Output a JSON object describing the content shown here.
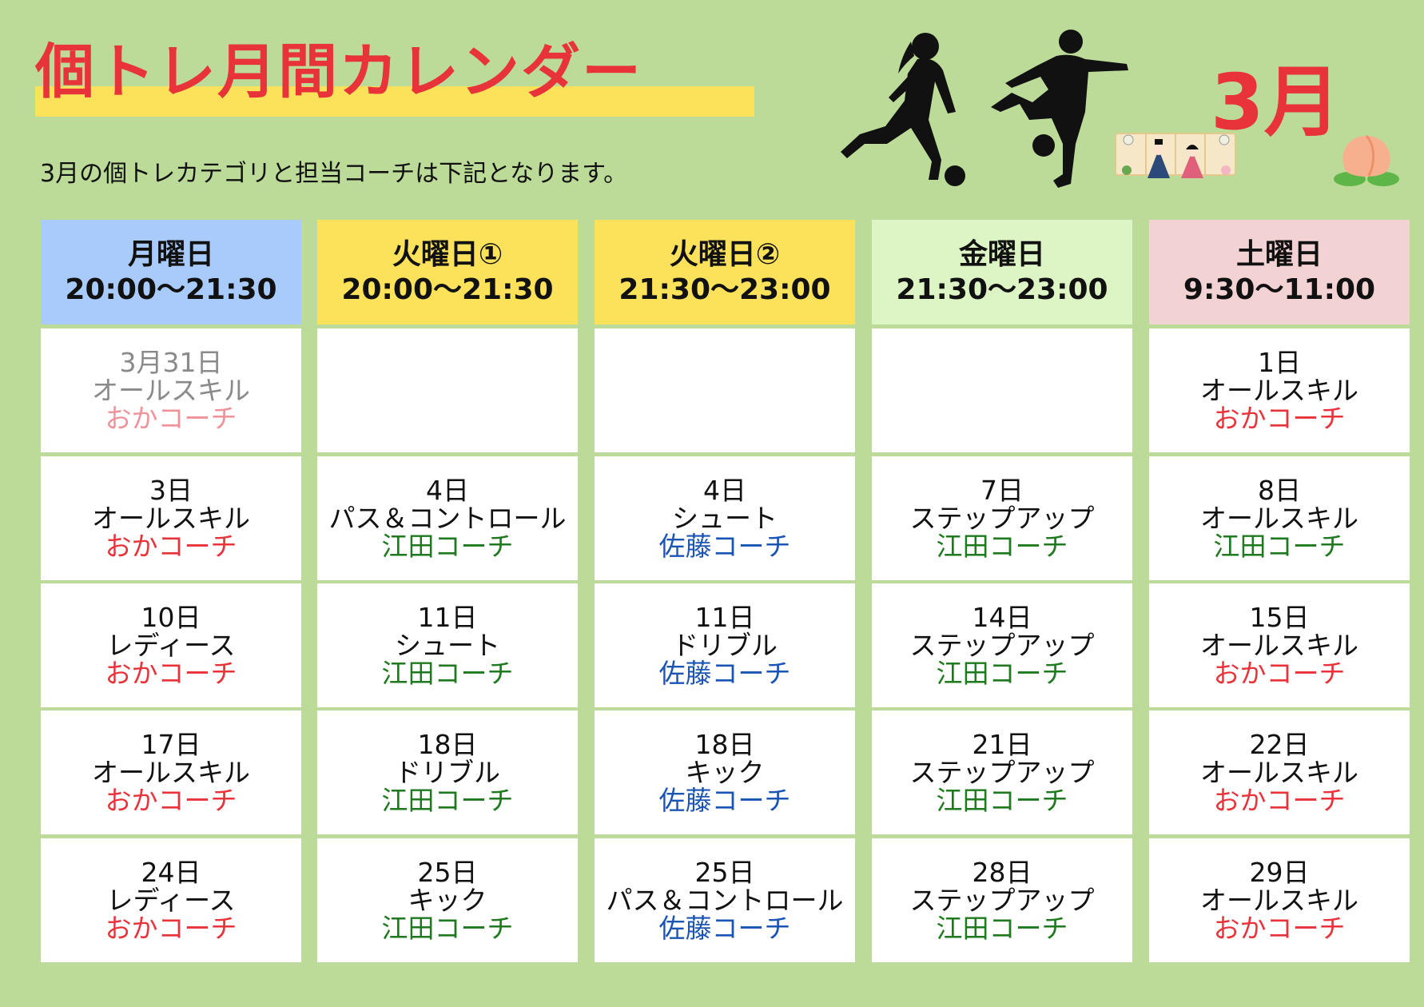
{
  "header": {
    "title": "個トレ月間カレンダー",
    "subtitle": "3月の個トレカテゴリと担当コーチは下記となります。",
    "month": "3月"
  },
  "colors": {
    "background": "#bcdb99",
    "title_red": "#e8333a",
    "highlight_yellow": "#fce25a",
    "coach_oka": "#e8333a",
    "coach_eda": "#1f7a1f",
    "coach_sato": "#1b55b4"
  },
  "illustrations": [
    "soccer-player-female-silhouette",
    "soccer-player-male-silhouette",
    "hina-dolls-icon",
    "peach-icon"
  ],
  "columns": [
    {
      "day": "月曜日",
      "time": "20:00〜21:30",
      "header_color": "#a9cbfb",
      "cells": [
        {
          "date": "3月31日",
          "name": "オールスキル",
          "coach": "おかコーチ",
          "coach_key": "oka",
          "faded": true
        },
        {
          "date": "3日",
          "name": "オールスキル",
          "coach": "おかコーチ",
          "coach_key": "oka"
        },
        {
          "date": "10日",
          "name": "レディース",
          "coach": "おかコーチ",
          "coach_key": "oka"
        },
        {
          "date": "17日",
          "name": "オールスキル",
          "coach": "おかコーチ",
          "coach_key": "oka"
        },
        {
          "date": "24日",
          "name": "レディース",
          "coach": "おかコーチ",
          "coach_key": "oka"
        }
      ]
    },
    {
      "day": "火曜日①",
      "time": "20:00〜21:30",
      "header_color": "#fce25a",
      "cells": [
        {
          "empty": true
        },
        {
          "date": "4日",
          "name": "パス＆コントロール",
          "coach": "江田コーチ",
          "coach_key": "eda"
        },
        {
          "date": "11日",
          "name": "シュート",
          "coach": "江田コーチ",
          "coach_key": "eda"
        },
        {
          "date": "18日",
          "name": "ドリブル",
          "coach": "江田コーチ",
          "coach_key": "eda"
        },
        {
          "date": "25日",
          "name": "キック",
          "coach": "江田コーチ",
          "coach_key": "eda"
        }
      ]
    },
    {
      "day": "火曜日②",
      "time": "21:30〜23:00",
      "header_color": "#fce25a",
      "cells": [
        {
          "empty": true
        },
        {
          "date": "4日",
          "name": "シュート",
          "coach": "佐藤コーチ",
          "coach_key": "sato"
        },
        {
          "date": "11日",
          "name": "ドリブル",
          "coach": "佐藤コーチ",
          "coach_key": "sato"
        },
        {
          "date": "18日",
          "name": "キック",
          "coach": "佐藤コーチ",
          "coach_key": "sato"
        },
        {
          "date": "25日",
          "name": "パス＆コントロール",
          "coach": "佐藤コーチ",
          "coach_key": "sato"
        }
      ]
    },
    {
      "day": "金曜日",
      "time": "21:30〜23:00",
      "header_color": "#ddf5c4",
      "cells": [
        {
          "empty": true
        },
        {
          "date": "7日",
          "name": "ステップアップ",
          "coach": "江田コーチ",
          "coach_key": "eda"
        },
        {
          "date": "14日",
          "name": "ステップアップ",
          "coach": "江田コーチ",
          "coach_key": "eda"
        },
        {
          "date": "21日",
          "name": "ステップアップ",
          "coach": "江田コーチ",
          "coach_key": "eda"
        },
        {
          "date": "28日",
          "name": "ステップアップ",
          "coach": "江田コーチ",
          "coach_key": "eda"
        }
      ]
    },
    {
      "day": "土曜日",
      "time": "9:30〜11:00",
      "header_color": "#f3d2d4",
      "cells": [
        {
          "date": "1日",
          "name": "オールスキル",
          "coach": "おかコーチ",
          "coach_key": "oka"
        },
        {
          "date": "8日",
          "name": "オールスキル",
          "coach": "江田コーチ",
          "coach_key": "eda"
        },
        {
          "date": "15日",
          "name": "オールスキル",
          "coach": "おかコーチ",
          "coach_key": "oka"
        },
        {
          "date": "22日",
          "name": "オールスキル",
          "coach": "おかコーチ",
          "coach_key": "oka"
        },
        {
          "date": "29日",
          "name": "オールスキル",
          "coach": "おかコーチ",
          "coach_key": "oka"
        }
      ]
    }
  ]
}
